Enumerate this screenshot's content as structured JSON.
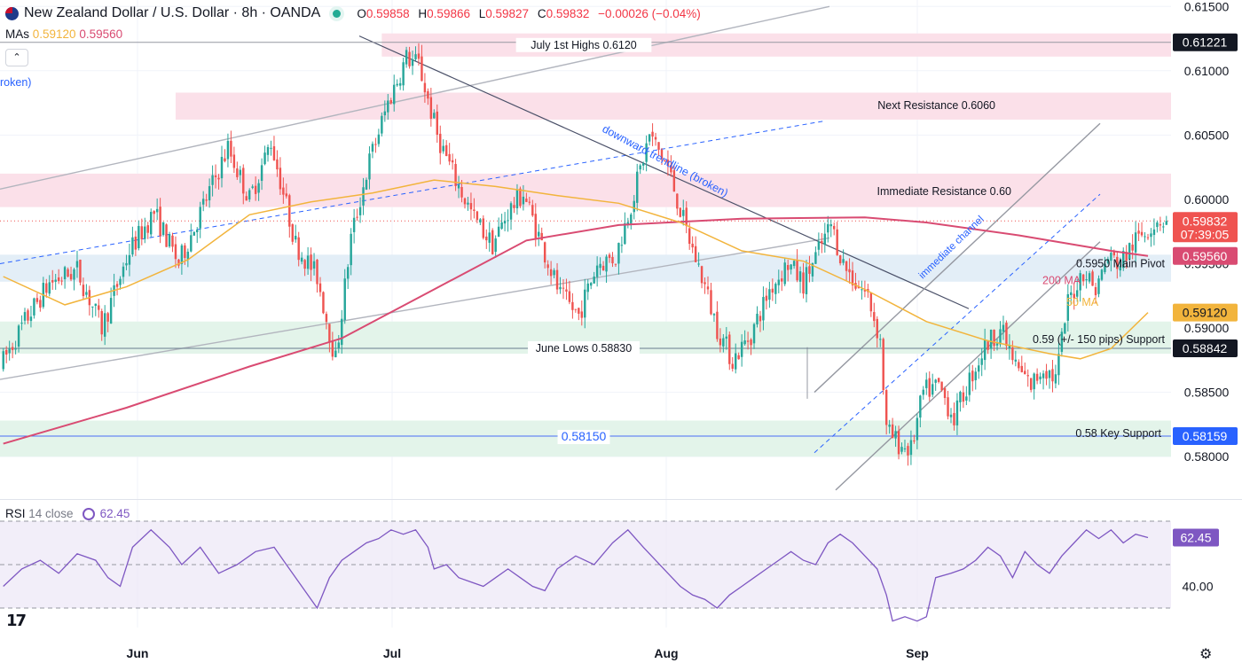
{
  "header": {
    "symbol": "New Zealand Dollar / U.S. Dollar · 8h · OANDA",
    "o_label": "O",
    "o": "0.59858",
    "h_label": "H",
    "h": "0.59866",
    "l_label": "L",
    "l": "0.59827",
    "c_label": "C",
    "c": "0.59832",
    "change": "−0.00026 (−0.04%)"
  },
  "mas": {
    "label": "MAs",
    "ma50": "0.59120",
    "ma200": "0.59560"
  },
  "rsi": {
    "label": "RSI",
    "params": "14 close",
    "value": "62.45"
  },
  "colors": {
    "up": "#26a69a",
    "down": "#ef5350",
    "ma50": "#f2b43c",
    "ma200": "#d94b72",
    "rsi": "#7e57c2",
    "resistance_zone": "#fbe0e9",
    "pivot_zone": "#e3eef7",
    "support_zone": "#e3f4ea"
  },
  "icons": {
    "collapse": "chevron-up-icon",
    "settings": "gear-icon",
    "logo": "tradingview-logo",
    "rsi_source": "circle-arrow-icon"
  },
  "chart_data": {
    "type": "candlestick",
    "timeframe": "8h",
    "symbol": "NZDUSD",
    "x_labels": [
      "Jun",
      "Jul",
      "Aug",
      "Sep"
    ],
    "y_ticks": [
      "0.61500",
      "0.61000",
      "0.60500",
      "0.60000",
      "0.59500",
      "0.59000",
      "0.58500",
      "0.58000"
    ],
    "ylim": [
      0.5767,
      0.6155
    ],
    "last_price": 0.59832,
    "key_path": [
      [
        0,
        0.587
      ],
      [
        8,
        0.5905
      ],
      [
        16,
        0.5935
      ],
      [
        25,
        0.5945
      ],
      [
        33,
        0.59
      ],
      [
        42,
        0.596
      ],
      [
        50,
        0.599
      ],
      [
        58,
        0.595
      ],
      [
        66,
        0.5995
      ],
      [
        74,
        0.604
      ],
      [
        81,
        0.6
      ],
      [
        88,
        0.6045
      ],
      [
        96,
        0.5965
      ],
      [
        103,
        0.594
      ],
      [
        109,
        0.5875
      ],
      [
        114,
        0.597
      ],
      [
        120,
        0.603
      ],
      [
        126,
        0.6075
      ],
      [
        132,
        0.611
      ],
      [
        136,
        0.6105
      ],
      [
        142,
        0.605
      ],
      [
        148,
        0.6015
      ],
      [
        154,
        0.5985
      ],
      [
        160,
        0.5965
      ],
      [
        165,
        0.599
      ],
      [
        170,
        0.6005
      ],
      [
        176,
        0.5965
      ],
      [
        182,
        0.5925
      ],
      [
        188,
        0.591
      ],
      [
        194,
        0.595
      ],
      [
        200,
        0.5955
      ],
      [
        206,
        0.6005
      ],
      [
        211,
        0.605
      ],
      [
        217,
        0.6025
      ],
      [
        223,
        0.5975
      ],
      [
        228,
        0.594
      ],
      [
        233,
        0.59
      ],
      [
        238,
        0.5875
      ],
      [
        244,
        0.5895
      ],
      [
        250,
        0.593
      ],
      [
        256,
        0.595
      ],
      [
        261,
        0.5935
      ],
      [
        266,
        0.596
      ],
      [
        270,
        0.598
      ],
      [
        274,
        0.595
      ],
      [
        278,
        0.5935
      ],
      [
        282,
        0.5925
      ],
      [
        286,
        0.589
      ],
      [
        288,
        0.582
      ],
      [
        292,
        0.581
      ],
      [
        296,
        0.5805
      ],
      [
        300,
        0.585
      ],
      [
        305,
        0.5855
      ],
      [
        310,
        0.583
      ],
      [
        315,
        0.586
      ],
      [
        320,
        0.5885
      ],
      [
        325,
        0.59
      ],
      [
        330,
        0.587
      ],
      [
        335,
        0.5855
      ],
      [
        339,
        0.587
      ],
      [
        343,
        0.586
      ],
      [
        347,
        0.592
      ],
      [
        352,
        0.5945
      ],
      [
        356,
        0.593
      ],
      [
        360,
        0.5955
      ],
      [
        364,
        0.595
      ],
      [
        368,
        0.5965
      ],
      [
        372,
        0.5975
      ],
      [
        376,
        0.5985
      ],
      [
        378,
        0.59832
      ]
    ],
    "ma50_path": [
      [
        0,
        0.594
      ],
      [
        20,
        0.5918
      ],
      [
        40,
        0.5932
      ],
      [
        60,
        0.5953
      ],
      [
        80,
        0.5988
      ],
      [
        100,
        0.5998
      ],
      [
        120,
        0.6005
      ],
      [
        140,
        0.6015
      ],
      [
        160,
        0.601
      ],
      [
        180,
        0.6003
      ],
      [
        200,
        0.5997
      ],
      [
        220,
        0.5982
      ],
      [
        240,
        0.596
      ],
      [
        260,
        0.5952
      ],
      [
        280,
        0.593
      ],
      [
        300,
        0.5905
      ],
      [
        320,
        0.589
      ],
      [
        340,
        0.588
      ],
      [
        350,
        0.5876
      ],
      [
        360,
        0.5884
      ],
      [
        372,
        0.5912
      ]
    ],
    "ma200_path": [
      [
        0,
        0.581
      ],
      [
        40,
        0.5838
      ],
      [
        80,
        0.587
      ],
      [
        110,
        0.5892
      ],
      [
        140,
        0.593
      ],
      [
        170,
        0.5968
      ],
      [
        200,
        0.598
      ],
      [
        240,
        0.5985
      ],
      [
        280,
        0.5986
      ],
      [
        300,
        0.5982
      ],
      [
        330,
        0.5972
      ],
      [
        360,
        0.596
      ],
      [
        372,
        0.5956
      ]
    ],
    "zones": [
      {
        "label": "July 1st Highs 0.6120",
        "y0": 0.6111,
        "y1": 0.6129,
        "kind": "resistance",
        "x_start": 123
      },
      {
        "label": "Next Resistance 0.6060",
        "y0": 0.6062,
        "y1": 0.6083,
        "kind": "resistance",
        "x_start": 56
      },
      {
        "label": "Immediate Resistance 0.60",
        "y0": 0.5994,
        "y1": 0.602,
        "kind": "resistance",
        "x_start": 0
      },
      {
        "label": "0.5950 Main Pivot",
        "y0": 0.5936,
        "y1": 0.5957,
        "kind": "pivot",
        "x_start": 0
      },
      {
        "label": "0.59 (+/- 150 pips) Support",
        "y0": 0.588,
        "y1": 0.5905,
        "kind": "support",
        "x_start": 0
      },
      {
        "label": "0.58 Key Support",
        "y0": 0.58,
        "y1": 0.5828,
        "kind": "support",
        "x_start": 0
      }
    ],
    "levels": [
      {
        "label": "June Lows 0.58830",
        "price": 0.58842
      },
      {
        "label": "0.58150",
        "price": 0.58159
      },
      {
        "label": "",
        "price": 0.61221
      }
    ],
    "annotations": {
      "downtrend": "downward trendline (broken)",
      "channel": "immediate channel",
      "ma200": "200 MA",
      "ma50": "50 MA",
      "broken_left": "roken)"
    },
    "price_tags": [
      {
        "text": "0.61221",
        "price": 0.61221,
        "bg": "#131722",
        "fg": "#ffffff"
      },
      {
        "text": "0.59832",
        "sub": "07:39:05",
        "price": 0.59832,
        "bg": "#ef5350",
        "fg": "#ffffff"
      },
      {
        "text": "0.59560",
        "price": 0.5956,
        "bg": "#d94b72",
        "fg": "#ffffff"
      },
      {
        "text": "0.59120",
        "price": 0.5912,
        "bg": "#f2b43c",
        "fg": "#131722"
      },
      {
        "text": "0.58842",
        "price": 0.58842,
        "bg": "#131722",
        "fg": "#ffffff"
      },
      {
        "text": "0.58159",
        "price": 0.58159,
        "bg": "#2962ff",
        "fg": "#ffffff"
      }
    ],
    "rsi": {
      "ylim": [
        21,
        79
      ],
      "upper": 70,
      "lower": 30,
      "mid": 50,
      "tick": "40.00",
      "value_label": "62.45",
      "path": [
        [
          0,
          40
        ],
        [
          6,
          48
        ],
        [
          12,
          52
        ],
        [
          18,
          46
        ],
        [
          24,
          55
        ],
        [
          30,
          52
        ],
        [
          34,
          44
        ],
        [
          38,
          40
        ],
        [
          42,
          58
        ],
        [
          48,
          66
        ],
        [
          54,
          58
        ],
        [
          58,
          50
        ],
        [
          64,
          58
        ],
        [
          70,
          46
        ],
        [
          76,
          50
        ],
        [
          82,
          56
        ],
        [
          88,
          58
        ],
        [
          92,
          50
        ],
        [
          96,
          42
        ],
        [
          100,
          34
        ],
        [
          102,
          30
        ],
        [
          106,
          44
        ],
        [
          110,
          52
        ],
        [
          114,
          56
        ],
        [
          118,
          60
        ],
        [
          122,
          62
        ],
        [
          126,
          66
        ],
        [
          130,
          64
        ],
        [
          134,
          66
        ],
        [
          138,
          58
        ],
        [
          140,
          48
        ],
        [
          144,
          50
        ],
        [
          148,
          44
        ],
        [
          152,
          42
        ],
        [
          156,
          40
        ],
        [
          160,
          44
        ],
        [
          164,
          48
        ],
        [
          168,
          44
        ],
        [
          172,
          40
        ],
        [
          176,
          38
        ],
        [
          180,
          48
        ],
        [
          186,
          54
        ],
        [
          192,
          50
        ],
        [
          198,
          60
        ],
        [
          203,
          66
        ],
        [
          208,
          58
        ],
        [
          212,
          52
        ],
        [
          216,
          46
        ],
        [
          220,
          40
        ],
        [
          224,
          36
        ],
        [
          228,
          34
        ],
        [
          232,
          30
        ],
        [
          236,
          36
        ],
        [
          240,
          40
        ],
        [
          244,
          44
        ],
        [
          248,
          48
        ],
        [
          252,
          52
        ],
        [
          256,
          56
        ],
        [
          260,
          52
        ],
        [
          264,
          50
        ],
        [
          268,
          60
        ],
        [
          272,
          64
        ],
        [
          276,
          60
        ],
        [
          280,
          54
        ],
        [
          284,
          48
        ],
        [
          287,
          36
        ],
        [
          289,
          24
        ],
        [
          293,
          26
        ],
        [
          297,
          24
        ],
        [
          300,
          26
        ],
        [
          303,
          44
        ],
        [
          308,
          46
        ],
        [
          312,
          48
        ],
        [
          316,
          52
        ],
        [
          320,
          58
        ],
        [
          324,
          54
        ],
        [
          328,
          44
        ],
        [
          332,
          56
        ],
        [
          336,
          50
        ],
        [
          340,
          46
        ],
        [
          344,
          54
        ],
        [
          348,
          60
        ],
        [
          352,
          66
        ],
        [
          356,
          62
        ],
        [
          360,
          66
        ],
        [
          364,
          60
        ],
        [
          368,
          64
        ],
        [
          372,
          62.45
        ]
      ]
    }
  }
}
